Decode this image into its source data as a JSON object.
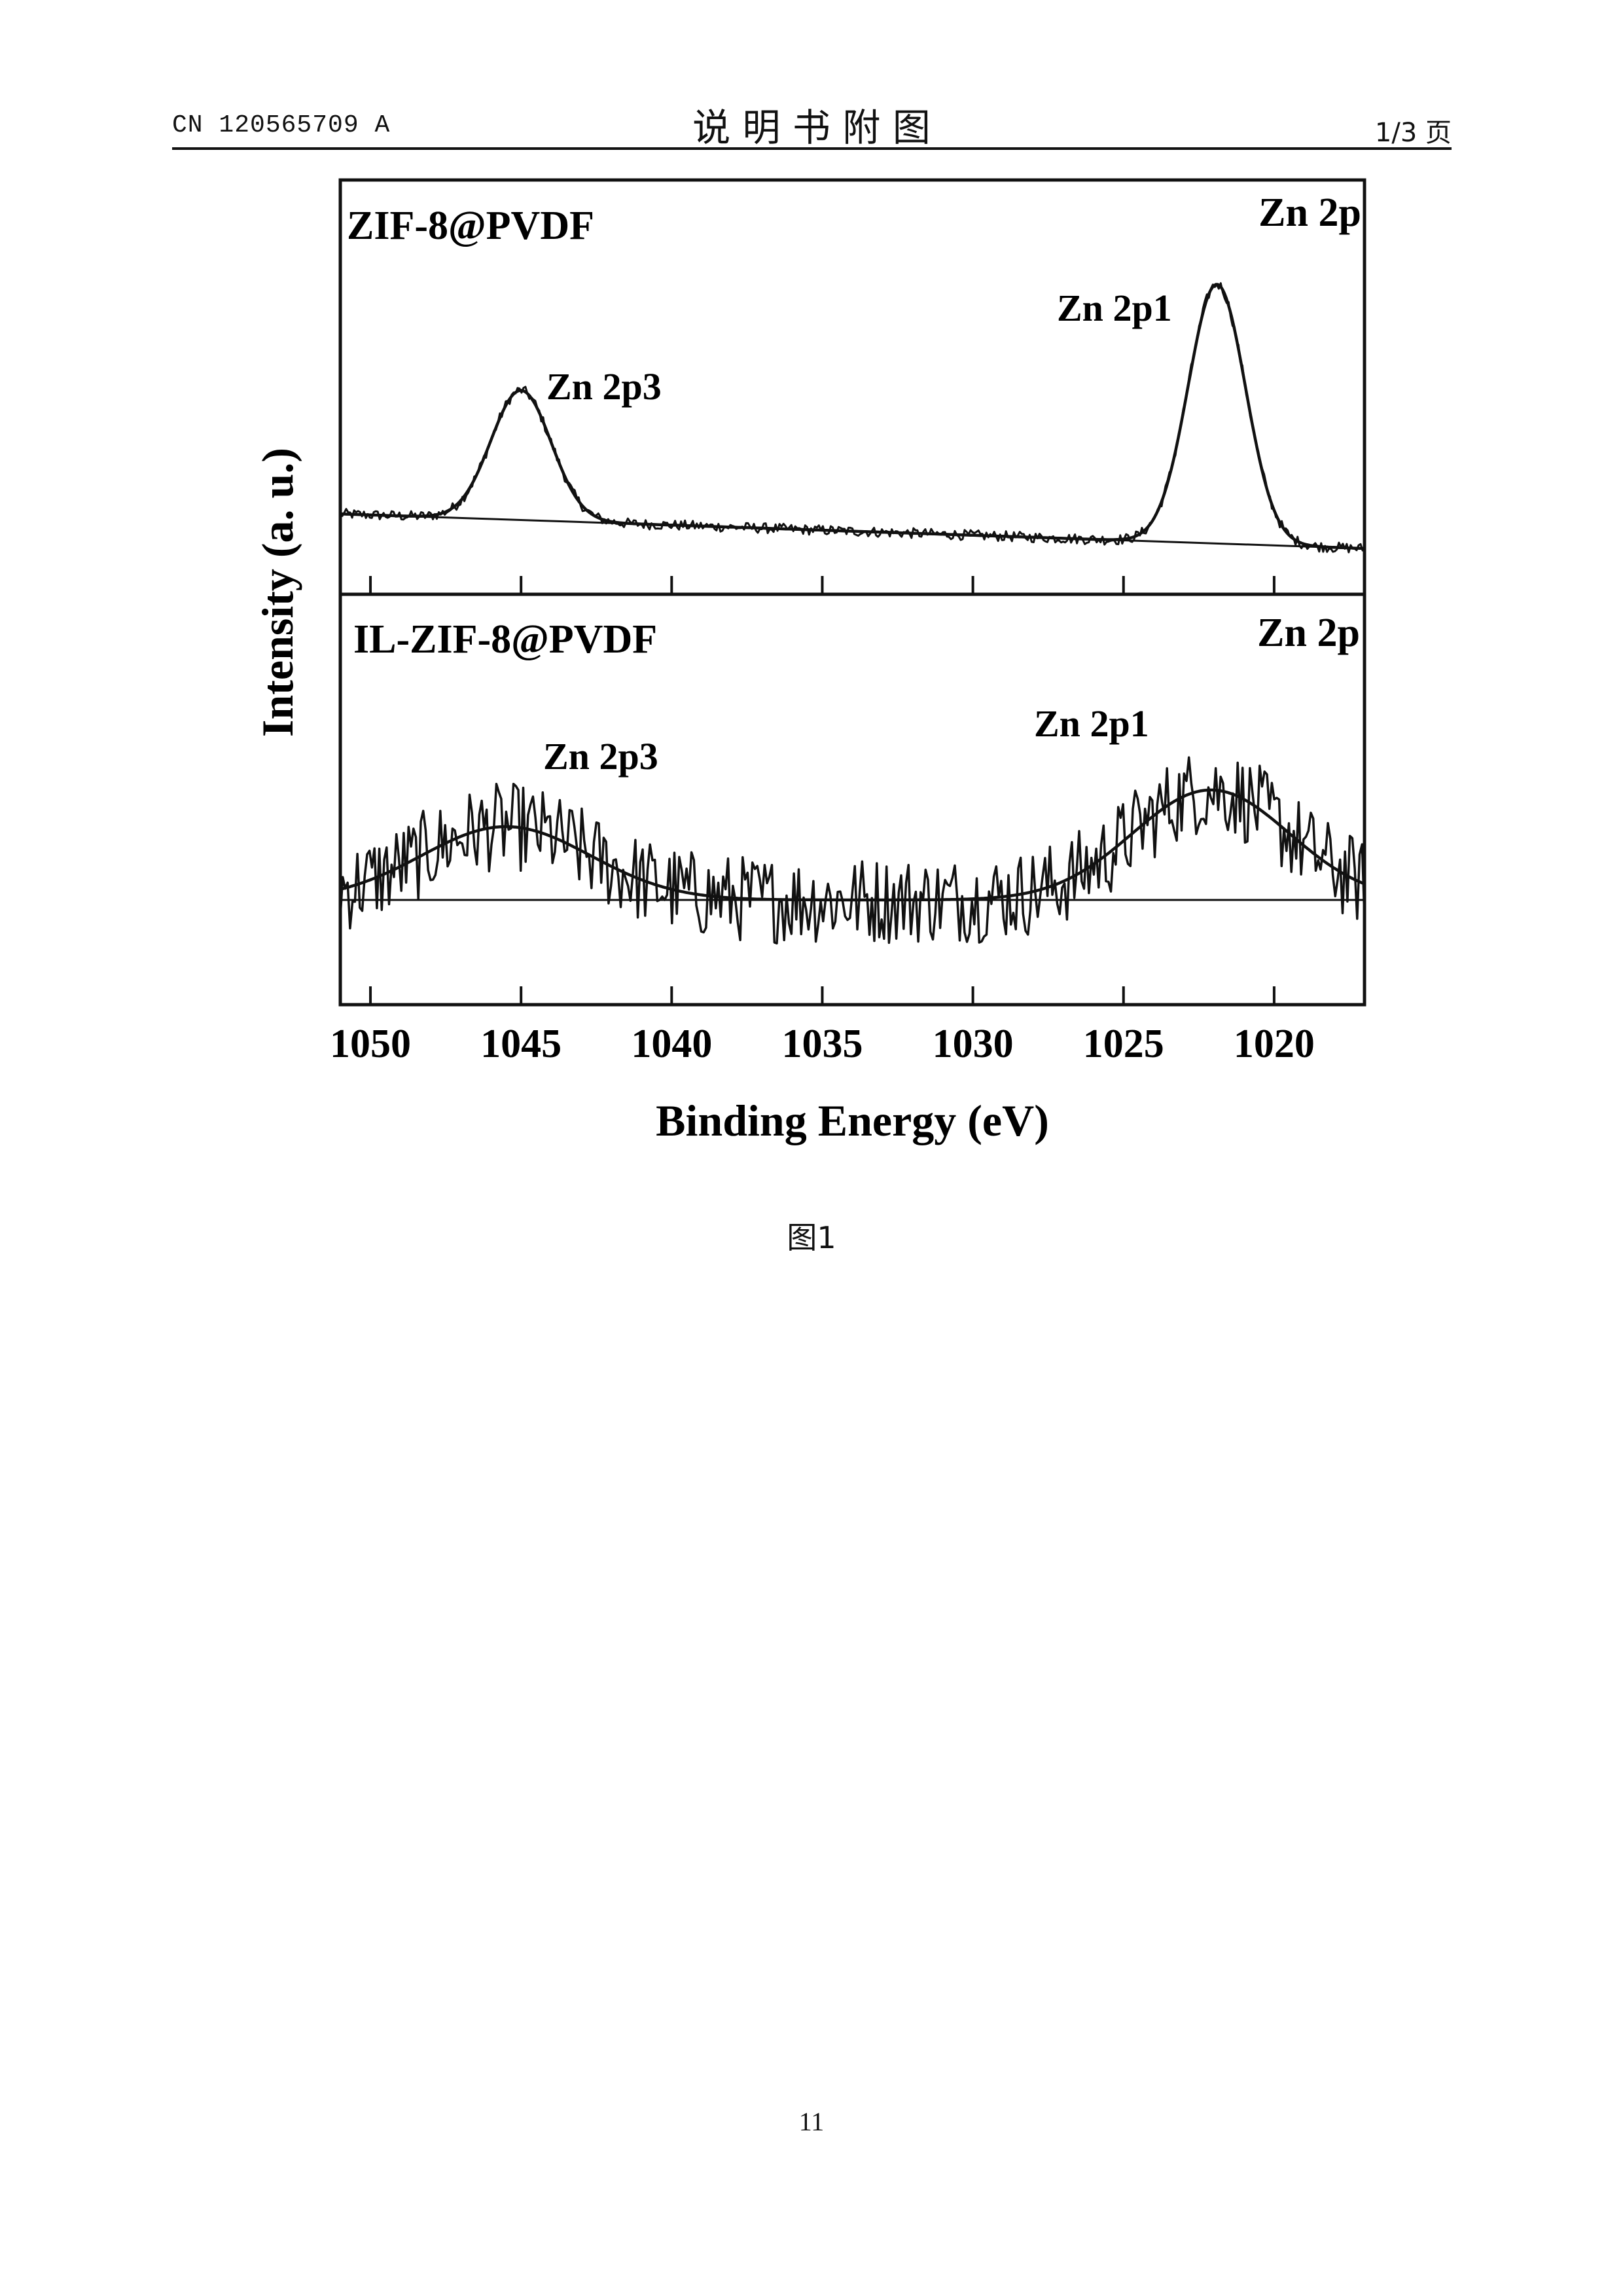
{
  "header": {
    "patent_number": "CN 120565709 A",
    "title": "说 明 书 附 图",
    "page_of": "1/3 页"
  },
  "caption": "图1",
  "page_number": "11",
  "chart_data": {
    "type": "line",
    "xlabel": "Binding Energy (eV)",
    "ylabel": "Intensity (a. u.)",
    "x_reversed": true,
    "xlim": [
      1051,
      1017
    ],
    "xticks": [
      1050,
      1045,
      1040,
      1035,
      1030,
      1025,
      1020
    ],
    "grid": false,
    "panels": [
      {
        "sample": "ZIF-8@PVDF",
        "region": "Zn 2p",
        "ylim": [
          0,
          1
        ],
        "baseline": [
          [
            1051,
            0.08
          ],
          [
            1017,
            0.0
          ]
        ],
        "peaks": [
          {
            "label": "Zn 2p3",
            "center": 1045.0,
            "amplitude": 0.3,
            "sigma": 1.0
          },
          {
            "label": "Zn 2p1",
            "center": 1021.9,
            "amplitude": 0.6,
            "sigma": 0.95
          }
        ],
        "noise": 0.012
      },
      {
        "sample": "IL-ZIF-8@PVDF",
        "region": "Zn 2p",
        "ylim": [
          0,
          1
        ],
        "baseline": [
          [
            1051,
            0.0
          ],
          [
            1017,
            0.0
          ]
        ],
        "peaks": [
          {
            "label": "Zn 2p3",
            "center": 1045.5,
            "amplitude": 0.2,
            "sigma": 2.8
          },
          {
            "label": "Zn 2p1",
            "center": 1022.1,
            "amplitude": 0.3,
            "sigma": 2.6
          }
        ],
        "noise": 0.12
      }
    ]
  }
}
